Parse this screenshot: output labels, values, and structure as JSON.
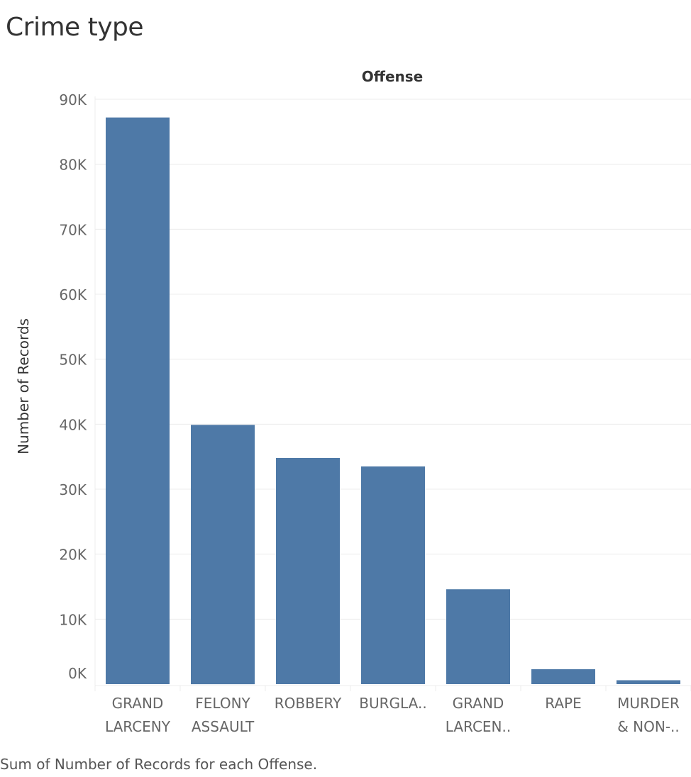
{
  "page": {
    "title": "Crime type",
    "caption": "Sum of Number of Records for each Offense."
  },
  "colors": {
    "bar": "#4e79a7",
    "grid": "#ececec"
  },
  "chart_data": {
    "type": "bar",
    "column_header": "Offense",
    "ylabel": "Number of Records",
    "ylim": [
      0,
      90000
    ],
    "yticks": [
      {
        "value": 0,
        "label": "0K"
      },
      {
        "value": 10000,
        "label": "10K"
      },
      {
        "value": 20000,
        "label": "20K"
      },
      {
        "value": 30000,
        "label": "30K"
      },
      {
        "value": 40000,
        "label": "40K"
      },
      {
        "value": 50000,
        "label": "50K"
      },
      {
        "value": 60000,
        "label": "60K"
      },
      {
        "value": 70000,
        "label": "70K"
      },
      {
        "value": 80000,
        "label": "80K"
      },
      {
        "value": 90000,
        "label": "90K"
      }
    ],
    "categories": [
      [
        "GRAND",
        "LARCENY"
      ],
      [
        "FELONY",
        "ASSAULT"
      ],
      [
        "ROBBERY"
      ],
      [
        "BURGLA.."
      ],
      [
        "GRAND",
        "LARCEN.."
      ],
      [
        "RAPE"
      ],
      [
        "MURDER",
        "& NON-.."
      ]
    ],
    "values": [
      87200,
      39900,
      34800,
      33500,
      14600,
      2300,
      600
    ],
    "grid": true
  }
}
